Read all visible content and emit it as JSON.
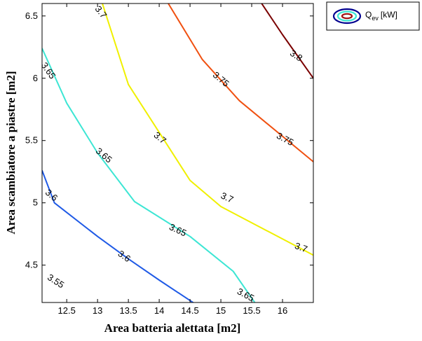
{
  "chart_data": {
    "type": "contour",
    "xlabel": "Area batteria alettata [m2]",
    "ylabel": "Area scambiatore a piastre [m2]",
    "xlim": [
      12.1,
      16.5
    ],
    "ylim": [
      4.2,
      6.6
    ],
    "xticks": [
      "12.5",
      "13",
      "13.5",
      "14",
      "14.5",
      "15",
      "15.5",
      "16"
    ],
    "yticks": [
      "4.5",
      "5",
      "5.5",
      "6",
      "6.5"
    ],
    "grid": false,
    "legend": {
      "position": "outside top-right",
      "entries": [
        {
          "symbol": "Q",
          "subscript": "ev",
          "unit": "[kW]"
        }
      ]
    },
    "levels": [
      {
        "level": 3.55,
        "color": "#00008f",
        "points": [
          [
            12.43,
            4.2
          ],
          [
            12.62,
            4.12
          ]
        ],
        "labels": [
          {
            "text": "3.55",
            "x": 12.32,
            "y": 4.37,
            "angle": 33
          }
        ]
      },
      {
        "level": 3.6,
        "color": "#1f5ae6",
        "points": [
          [
            12.1,
            5.26
          ],
          [
            12.3,
            5.0
          ],
          [
            13.0,
            4.73
          ],
          [
            13.5,
            4.55
          ],
          [
            14.0,
            4.38
          ],
          [
            14.7,
            4.15
          ]
        ],
        "labels": [
          {
            "text": "3.6",
            "x": 12.25,
            "y": 5.06,
            "angle": 40
          },
          {
            "text": "3.6",
            "x": 13.43,
            "y": 4.57,
            "angle": 35
          }
        ]
      },
      {
        "level": 3.65,
        "color": "#3de6d4",
        "points": [
          [
            12.1,
            6.24
          ],
          [
            12.5,
            5.8
          ],
          [
            13.0,
            5.4
          ],
          [
            13.6,
            5.01
          ],
          [
            14.5,
            4.73
          ],
          [
            15.2,
            4.45
          ],
          [
            15.55,
            4.2
          ]
        ],
        "labels": [
          {
            "text": "3.65",
            "x": 12.2,
            "y": 6.06,
            "angle": 55
          },
          {
            "text": "3.65",
            "x": 13.1,
            "y": 5.38,
            "angle": 40
          },
          {
            "text": "3.65",
            "x": 14.3,
            "y": 4.78,
            "angle": 25
          },
          {
            "text": "3.65",
            "x": 15.4,
            "y": 4.26,
            "angle": 28
          }
        ]
      },
      {
        "level": 3.7,
        "color": "#f0f000",
        "points": [
          [
            13.0,
            6.72
          ],
          [
            13.5,
            5.95
          ],
          [
            14.5,
            5.18
          ],
          [
            15.0,
            4.97
          ],
          [
            16.5,
            4.58
          ]
        ],
        "labels": [
          {
            "text": "3.7",
            "x": 13.05,
            "y": 6.53,
            "angle": 52
          },
          {
            "text": "3.7",
            "x": 14.01,
            "y": 5.52,
            "angle": 40
          },
          {
            "text": "3.7",
            "x": 15.1,
            "y": 5.04,
            "angle": 25
          },
          {
            "text": "3.7",
            "x": 16.3,
            "y": 4.64,
            "angle": 20
          }
        ]
      },
      {
        "level": 3.75,
        "color": "#f05010",
        "points": [
          [
            14.0,
            6.72
          ],
          [
            14.7,
            6.15
          ],
          [
            15.3,
            5.82
          ],
          [
            16.5,
            5.33
          ]
        ],
        "labels": [
          {
            "text": "3.75",
            "x": 15.0,
            "y": 5.99,
            "angle": 40
          },
          {
            "text": "3.75",
            "x": 16.04,
            "y": 5.51,
            "angle": 28
          }
        ]
      },
      {
        "level": 3.8,
        "color": "#7a0000",
        "points": [
          [
            15.5,
            6.72
          ],
          [
            16.0,
            6.35
          ],
          [
            16.5,
            6.0
          ]
        ],
        "labels": [
          {
            "text": "3.8",
            "x": 16.22,
            "y": 6.18,
            "angle": 34
          }
        ]
      }
    ]
  }
}
